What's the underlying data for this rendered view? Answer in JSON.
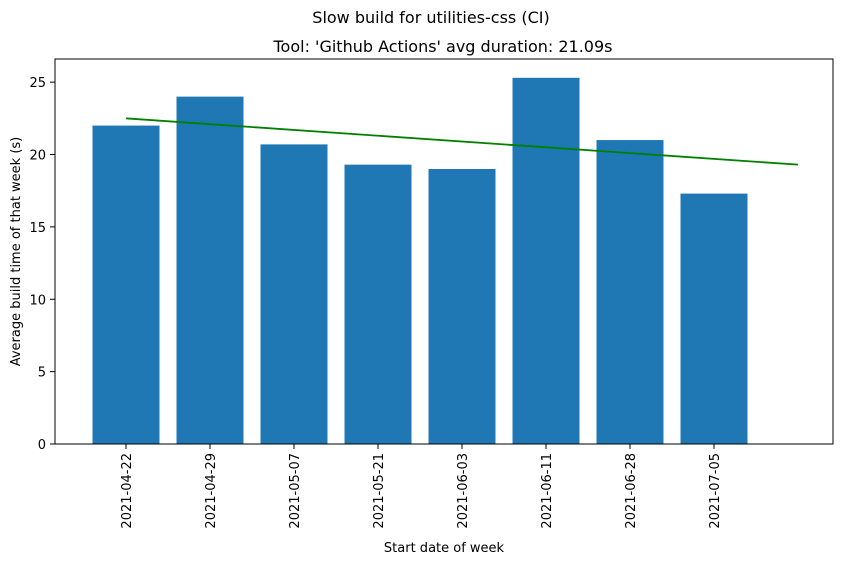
{
  "chart_data": {
    "type": "bar",
    "suptitle": "Slow build for utilities-css (CI)",
    "title": "Tool: 'Github Actions' avg duration: 21.09s",
    "xlabel": "Start date of week",
    "ylabel": "Average build time of that week (s)",
    "categories": [
      "2021-04-22",
      "2021-04-29",
      "2021-05-07",
      "2021-05-21",
      "2021-06-03",
      "2021-06-11",
      "2021-06-28",
      "2021-07-05"
    ],
    "values": [
      22.0,
      24.0,
      20.7,
      19.3,
      19.0,
      25.3,
      21.0,
      17.3
    ],
    "ylim": [
      0,
      26.6
    ],
    "yticks": [
      0,
      5,
      10,
      15,
      20,
      25
    ],
    "bar_color": "#1f77b4",
    "trendline": {
      "color": "#008000",
      "start": {
        "x": "2021-04-22",
        "y": 22.5
      },
      "end": {
        "x_index": 8,
        "y": 19.3
      }
    },
    "grid": false,
    "legend": "none"
  }
}
